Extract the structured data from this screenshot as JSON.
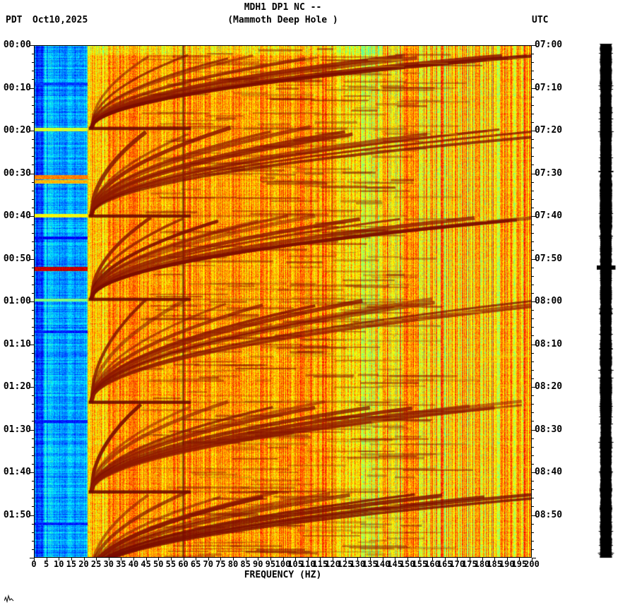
{
  "header": {
    "station_line": "MDH1 DP1 NC --",
    "location_line": "(Mammoth Deep Hole )",
    "tz_left": "PDT",
    "date": "Oct10,2025",
    "tz_right": "UTC"
  },
  "x_axis": {
    "label": "FREQUENCY (HZ)",
    "min": 0,
    "max": 200,
    "tick_step_hz": 5,
    "tick_labels": [
      "0",
      "5",
      "10",
      "15",
      "20",
      "25",
      "30",
      "35",
      "40",
      "45",
      "50",
      "55",
      "60",
      "65",
      "70",
      "75",
      "80",
      "85",
      "90",
      "95",
      "100",
      "105",
      "110",
      "115",
      "120",
      "125",
      "130",
      "135",
      "140",
      "145",
      "150",
      "155",
      "160",
      "165",
      "170",
      "175",
      "180",
      "185",
      "190",
      "195",
      "200"
    ]
  },
  "left_axis": {
    "timezone": "PDT",
    "tick_labels": [
      "00:00",
      "00:10",
      "00:20",
      "00:30",
      "00:40",
      "00:50",
      "01:00",
      "01:10",
      "01:20",
      "01:30",
      "01:40",
      "01:50"
    ]
  },
  "right_axis": {
    "timezone": "UTC",
    "tick_labels": [
      "07:00",
      "07:10",
      "07:20",
      "07:30",
      "07:40",
      "07:50",
      "08:00",
      "08:10",
      "08:20",
      "08:30",
      "08:40",
      "08:50"
    ]
  },
  "chart_data": {
    "type": "heatmap",
    "title": "MDH1 DP1 NC -- (Mammoth Deep Hole ) seismic spectrogram",
    "xlabel": "FREQUENCY (HZ)",
    "xlim": [
      0,
      200
    ],
    "ylim_minutes": [
      0,
      120
    ],
    "time_start_pdt": "00:00",
    "time_end_pdt": "02:00",
    "time_start_utc": "07:00",
    "time_end_utc": "09:00",
    "major_tick_minutes": 10,
    "minor_tick_minutes": 2,
    "colormap": "jet",
    "legend": "none",
    "grid": "off",
    "features": {
      "quiet_band_hz": [
        0,
        21
      ],
      "mains_hum_hz": 60,
      "event_group_start_min": 2,
      "event_lines_min": [
        19.5,
        40,
        59.5,
        83.6,
        104.6,
        124
      ],
      "harmonic_arcs_per_group": 12,
      "left_band_streaks": [
        {
          "t": 19.6,
          "v": 0.58,
          "h": 0.4
        },
        {
          "t": 30.8,
          "v": 0.75,
          "h": 0.5
        },
        {
          "t": 31.9,
          "v": 0.7,
          "h": 0.4
        },
        {
          "t": 39.9,
          "v": 0.62,
          "h": 0.4
        },
        {
          "t": 52.3,
          "v": 0.93,
          "h": 0.5
        },
        {
          "t": 59.6,
          "v": 0.5,
          "h": 0.3
        },
        {
          "t": 9.0,
          "v": 0.18,
          "h": 0.3
        },
        {
          "t": 45.0,
          "v": 0.12,
          "h": 0.3
        },
        {
          "t": 67.0,
          "v": 0.15,
          "h": 0.3
        },
        {
          "t": 88.0,
          "v": 0.15,
          "h": 0.3
        },
        {
          "t": 112.0,
          "v": 0.16,
          "h": 0.3
        }
      ]
    },
    "colors": {
      "quiet": "#00c8ff",
      "mid": "#ff9900",
      "hot": "#8b0000",
      "axis": "#000000",
      "background": "#ffffff"
    },
    "trace": {
      "color": "#000000",
      "spike_at_min": 52
    }
  }
}
